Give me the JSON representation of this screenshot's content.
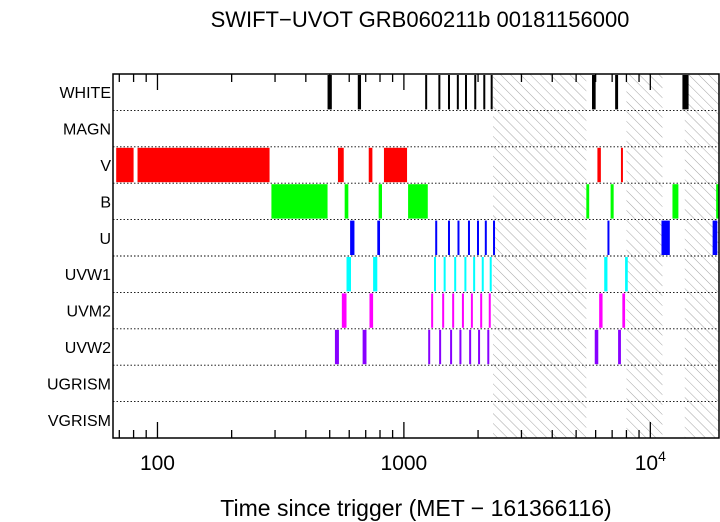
{
  "chart_data": {
    "type": "timeline",
    "title": "SWIFT−UVOT GRB060211b 00181156000",
    "xlabel": "Time since trigger (MET − 161366116)",
    "xscale": "log",
    "xlim": [
      66,
      19000
    ],
    "x_ticks": [
      {
        "value": 100,
        "label": "100"
      },
      {
        "value": 1000,
        "label": "1000"
      },
      {
        "value": 10000,
        "label": "10",
        "exp": "4"
      }
    ],
    "rows": [
      {
        "name": "WHITE",
        "color": "#000000"
      },
      {
        "name": "MAGN",
        "color": "#000000"
      },
      {
        "name": "V",
        "color": "#ff0000"
      },
      {
        "name": "B",
        "color": "#00ff00"
      },
      {
        "name": "U",
        "color": "#0000ff"
      },
      {
        "name": "UVW1",
        "color": "#00ffff"
      },
      {
        "name": "UVM2",
        "color": "#ff00ff"
      },
      {
        "name": "UVW2",
        "color": "#8800ff"
      },
      {
        "name": "UGRISM",
        "color": "#000000"
      },
      {
        "name": "VGRISM",
        "color": "#000000"
      }
    ],
    "gaps": [
      [
        2300,
        5500
      ],
      [
        8000,
        11200
      ],
      [
        13800,
        19000
      ]
    ],
    "segments": {
      "WHITE": [
        [
          490,
          510
        ],
        [
          650,
          670
        ],
        [
          1220,
          1230
        ],
        [
          1380,
          1390
        ],
        [
          1510,
          1520
        ],
        [
          1640,
          1650
        ],
        [
          1770,
          1780
        ],
        [
          1930,
          1940
        ],
        [
          2100,
          2110
        ],
        [
          2250,
          2260
        ],
        [
          5800,
          6000
        ],
        [
          7200,
          7400
        ],
        [
          13500,
          14300
        ]
      ],
      "V": [
        [
          68,
          80
        ],
        [
          83,
          285
        ],
        [
          540,
          570
        ],
        [
          720,
          745
        ],
        [
          830,
          1030
        ],
        [
          6100,
          6300
        ],
        [
          7600,
          7700
        ]
      ],
      "B": [
        [
          290,
          490
        ],
        [
          575,
          595
        ],
        [
          790,
          815
        ],
        [
          1040,
          1250
        ],
        [
          5500,
          5650
        ],
        [
          6900,
          7100
        ],
        [
          12300,
          13000
        ],
        [
          18500,
          19000
        ]
      ],
      "U": [
        [
          605,
          630
        ],
        [
          780,
          800
        ],
        [
          1340,
          1360
        ],
        [
          1510,
          1520
        ],
        [
          1650,
          1660
        ],
        [
          1820,
          1830
        ],
        [
          1980,
          1990
        ],
        [
          2130,
          2140
        ],
        [
          2300,
          2310
        ],
        [
          6700,
          6800
        ],
        [
          11100,
          12000
        ],
        [
          17900,
          18700
        ]
      ],
      "UVW1": [
        [
          585,
          610
        ],
        [
          750,
          780
        ],
        [
          1325,
          1345
        ],
        [
          1450,
          1470
        ],
        [
          1600,
          1620
        ],
        [
          1760,
          1780
        ],
        [
          1910,
          1930
        ],
        [
          2070,
          2090
        ],
        [
          2230,
          2250
        ],
        [
          6500,
          6700
        ],
        [
          7900,
          8100
        ]
      ],
      "UVM2": [
        [
          560,
          585
        ],
        [
          725,
          750
        ],
        [
          1290,
          1310
        ],
        [
          1430,
          1445
        ],
        [
          1570,
          1585
        ],
        [
          1720,
          1735
        ],
        [
          1870,
          1885
        ],
        [
          2040,
          2055
        ],
        [
          2210,
          2225
        ],
        [
          6200,
          6400
        ],
        [
          7700,
          7900
        ]
      ],
      "UVW2": [
        [
          525,
          545
        ],
        [
          680,
          705
        ],
        [
          1255,
          1270
        ],
        [
          1390,
          1405
        ],
        [
          1540,
          1550
        ],
        [
          1680,
          1690
        ],
        [
          1840,
          1850
        ],
        [
          2000,
          2010
        ],
        [
          2180,
          2190
        ],
        [
          5950,
          6150
        ],
        [
          7400,
          7600
        ]
      ]
    }
  }
}
